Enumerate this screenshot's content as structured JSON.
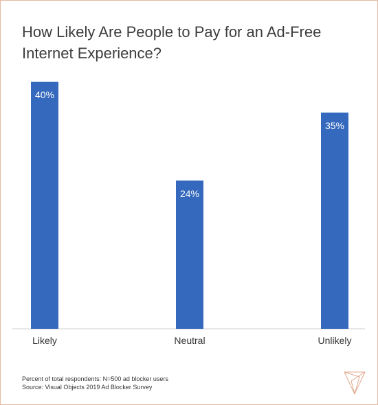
{
  "chart_data": {
    "type": "bar",
    "title": "How Likely Are People to Pay for an Ad-Free Internet Experience?",
    "categories": [
      "Likely",
      "Neutral",
      "Unlikely"
    ],
    "values": [
      40,
      24,
      35
    ],
    "data_labels": [
      "40%",
      "24%",
      "35%"
    ],
    "ylim": [
      0,
      40
    ],
    "grid": false,
    "bar_color": "#3569bd"
  },
  "footnotes": {
    "line1": "Percent of total respondents: N=500 ad blocker users",
    "line2": "Source: Visual Objects 2019 Ad Blocker Survey"
  },
  "brand": {
    "logo_icon": "visual-objects-logo-icon",
    "accent": "#e6b8a2"
  }
}
